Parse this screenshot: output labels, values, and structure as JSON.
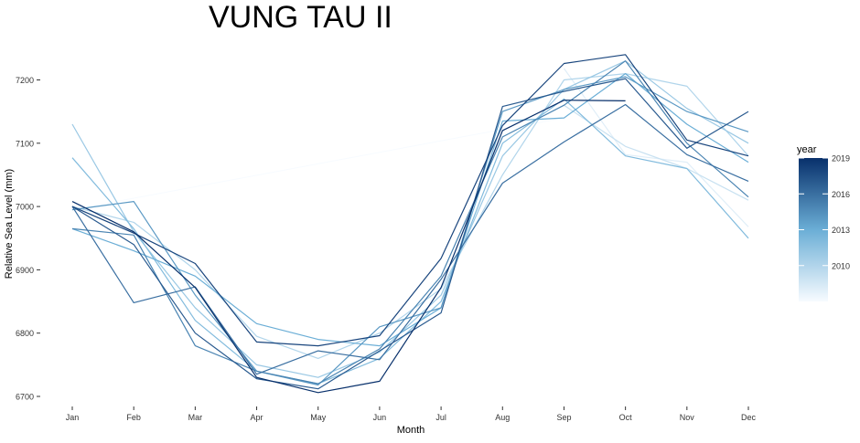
{
  "chart_data": {
    "type": "line",
    "title": "VUNG TAU II",
    "xlabel": "Month",
    "ylabel": "Relative Sea Level (mm)",
    "x": [
      "Jan",
      "Feb",
      "Mar",
      "Apr",
      "May",
      "Jun",
      "Jul",
      "Aug",
      "Sep",
      "Oct",
      "Nov",
      "Dec"
    ],
    "ylim": [
      6680,
      7240
    ],
    "yticks": [
      6700,
      6800,
      6900,
      7000,
      7100,
      7200
    ],
    "ytick_labels": [
      "6700",
      "6800",
      "6900",
      "7000",
      "7100",
      "7200"
    ],
    "grid": false,
    "legend": {
      "title": "year",
      "position": "right",
      "type": "colorbar",
      "range": [
        2007,
        2019
      ],
      "ticks": [
        2010,
        2013,
        2016,
        2019
      ],
      "tick_labels": [
        "2010",
        "2013",
        "2016",
        "2019"
      ],
      "low_color": "#f7fbff",
      "high_color": "#08306b"
    },
    "series": [
      {
        "year": 2007,
        "values": [
          null,
          null,
          null,
          null,
          null,
          null,
          null,
          null,
          null,
          null,
          null,
          null
        ],
        "gap_segment": {
          "from": [
            "Jan",
            6995
          ],
          "to": [
            "Sep",
            7140
          ]
        }
      },
      {
        "year": 2008,
        "values": [
          null,
          null,
          null,
          null,
          null,
          null,
          null,
          null,
          7218,
          7082,
          7070,
          6968
        ]
      },
      {
        "year": 2009,
        "values": [
          null,
          null,
          null,
          null,
          null,
          null,
          null,
          null,
          7160,
          7095,
          7060,
          7010
        ]
      },
      {
        "year": 2010,
        "values": [
          7000,
          6975,
          6900,
          6795,
          6760,
          6800,
          6870,
          7050,
          7200,
          7210,
          7190,
          7080
        ]
      },
      {
        "year": 2011,
        "values": [
          7130,
          6960,
          6840,
          6750,
          6730,
          6770,
          6860,
          7080,
          7185,
          7230,
          7155,
          7100
        ]
      },
      {
        "year": 2012,
        "values": [
          7077,
          6965,
          6820,
          6740,
          6720,
          6760,
          6850,
          7100,
          7170,
          7080,
          7060,
          6950
        ]
      },
      {
        "year": 2013,
        "values": [
          6965,
          6930,
          6890,
          6815,
          6790,
          6780,
          6840,
          7135,
          7140,
          7210,
          7130,
          7070
        ]
      },
      {
        "year": 2014,
        "values": [
          6995,
          7008,
          6860,
          6740,
          6718,
          6810,
          6840,
          7150,
          7185,
          7205,
          7150,
          7118
        ]
      },
      {
        "year": 2015,
        "values": [
          6965,
          6955,
          6780,
          6740,
          6720,
          6775,
          6890,
          7110,
          7160,
          7230,
          7100,
          7015
        ]
      },
      {
        "year": 2016,
        "values": [
          7000,
          6848,
          6873,
          6735,
          6772,
          6758,
          6885,
          7037,
          7102,
          7161,
          7082,
          7040
        ]
      },
      {
        "year": 2017,
        "values": [
          7000,
          6940,
          6800,
          6728,
          6712,
          6772,
          6832,
          7158,
          7182,
          7202,
          7092,
          7150
        ]
      },
      {
        "year": 2018,
        "values": [
          7000,
          6958,
          6910,
          6786,
          6780,
          6796,
          6918,
          7128,
          7226,
          7240,
          7105,
          7080
        ]
      },
      {
        "year": 2019,
        "values": [
          7008,
          6960,
          6872,
          6730,
          6706,
          6724,
          6872,
          7120,
          7168,
          7167,
          null,
          null
        ]
      }
    ]
  }
}
